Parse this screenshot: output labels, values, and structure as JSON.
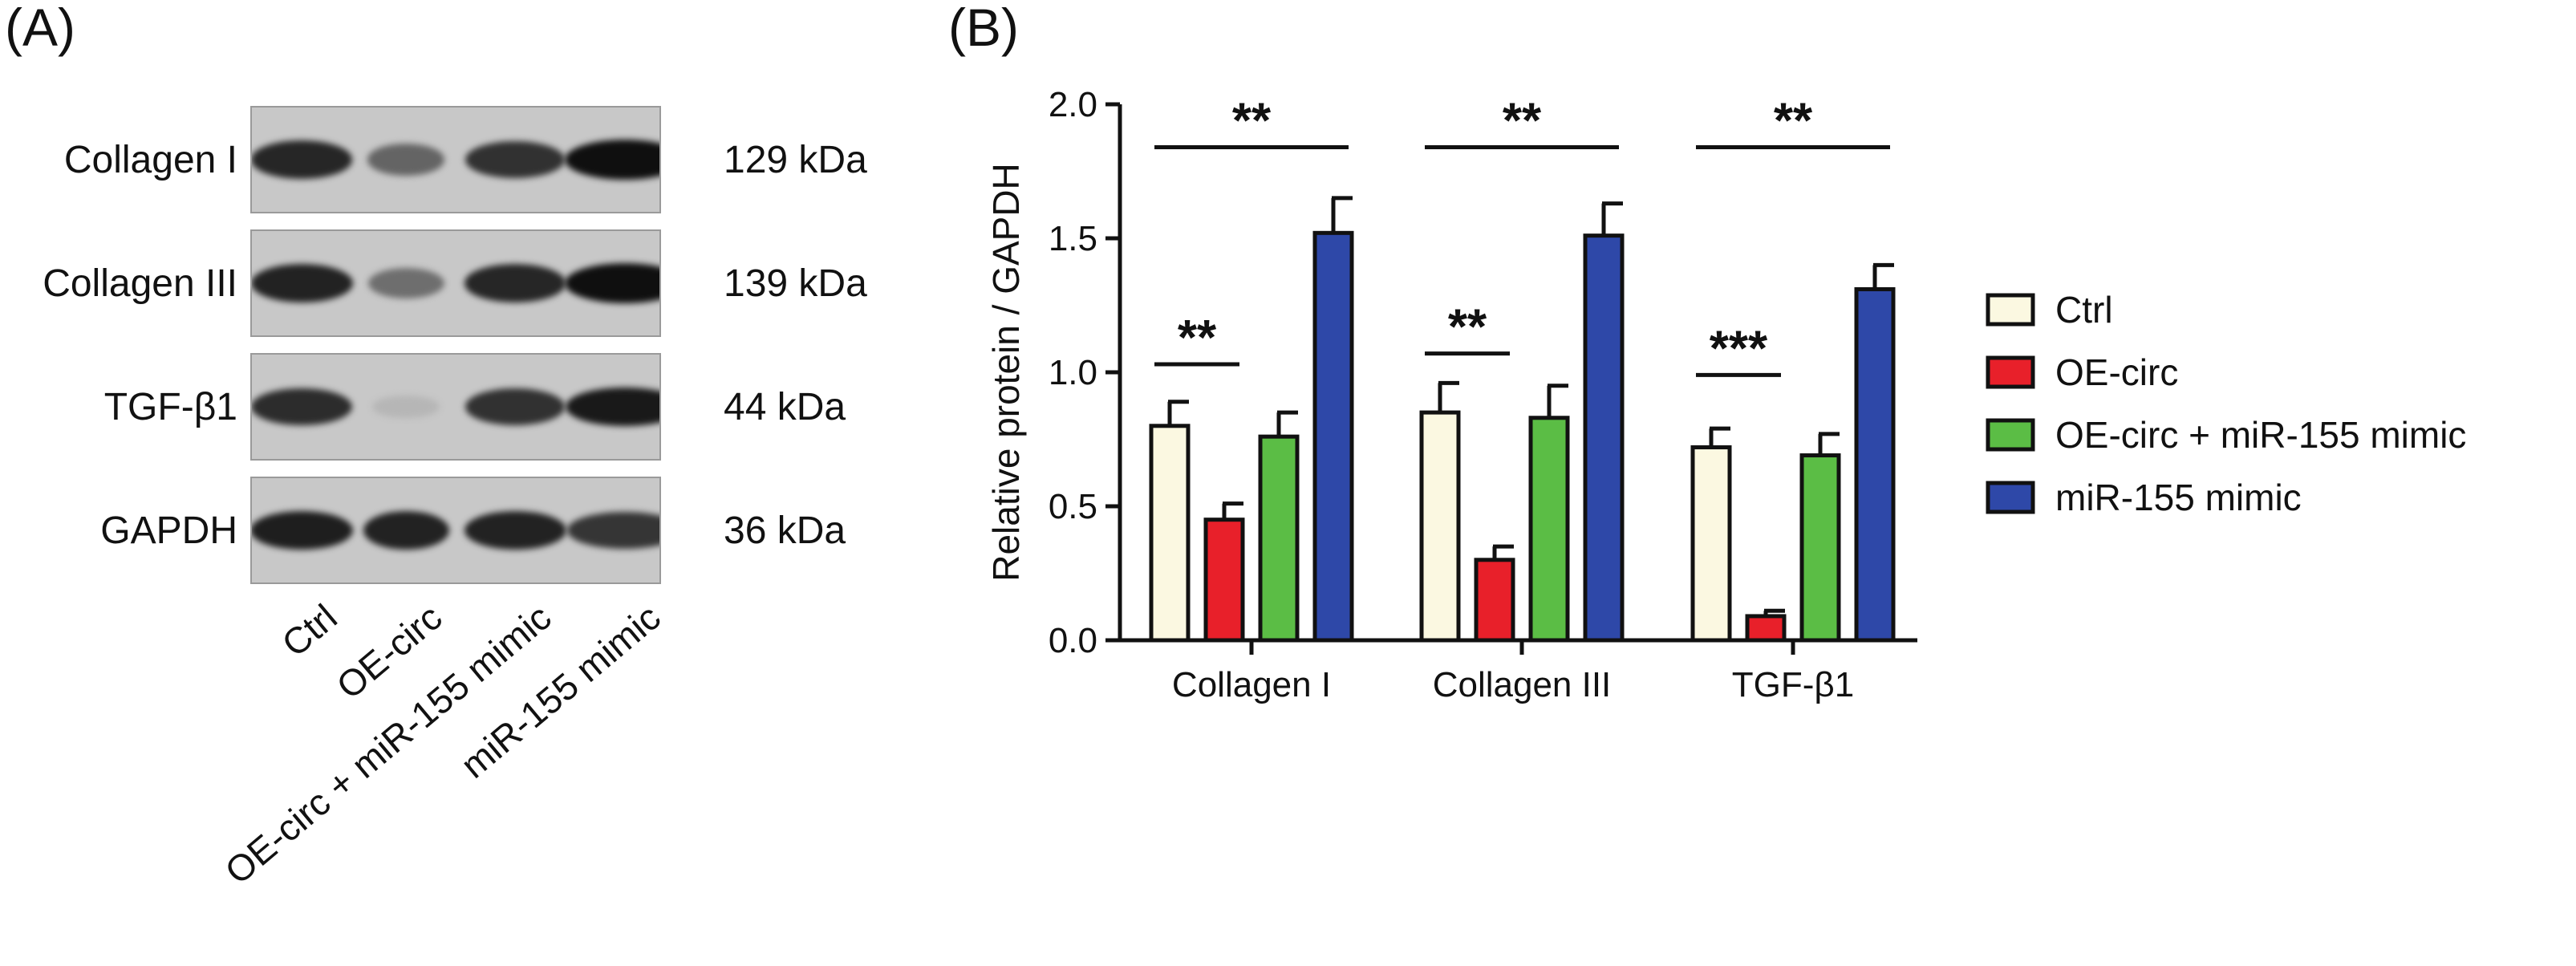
{
  "panels": {
    "a_label": "(A)",
    "b_label": "(B)"
  },
  "blot": {
    "rows": [
      {
        "protein": "Collagen  I",
        "kda": "129 kDa",
        "intensities": [
          0.88,
          0.55,
          0.82,
          1.0
        ]
      },
      {
        "protein": "Collagen III",
        "kda": "139 kDa",
        "intensities": [
          0.9,
          0.5,
          0.88,
          1.0
        ]
      },
      {
        "protein": "TGF-β1",
        "kda": "44 kDa",
        "intensities": [
          0.85,
          0.12,
          0.82,
          0.95
        ]
      },
      {
        "protein": "GAPDH",
        "kda": "36 kDa",
        "intensities": [
          0.92,
          0.9,
          0.9,
          0.8
        ]
      }
    ],
    "lanes": [
      "Ctrl",
      "OE-circ",
      "OE-circ + miR-155 mimic",
      "miR-155 mimic"
    ]
  },
  "colors": {
    "ctrl": "#fbf8e1",
    "oe_circ": "#e8202a",
    "combo": "#5bbd45",
    "mimic": "#2e48a8"
  },
  "chart_data": {
    "type": "bar",
    "title": "",
    "xlabel": "",
    "ylabel": "Relative protein / GAPDH",
    "ylim": [
      0,
      2.0
    ],
    "yticks": [
      "0.0",
      "0.5",
      "1.0",
      "1.5",
      "2.0"
    ],
    "categories": [
      "Collagen I",
      "Collagen III",
      "TGF-β1"
    ],
    "series": [
      {
        "name": "Ctrl",
        "color": "#fbf8e1",
        "values": [
          0.8,
          0.85,
          0.72
        ],
        "errors": [
          0.09,
          0.11,
          0.07
        ]
      },
      {
        "name": "OE-circ",
        "color": "#e8202a",
        "values": [
          0.45,
          0.3,
          0.09
        ],
        "errors": [
          0.06,
          0.05,
          0.02
        ]
      },
      {
        "name": "OE-circ + miR-155 mimic",
        "color": "#5bbd45",
        "values": [
          0.76,
          0.83,
          0.69
        ],
        "errors": [
          0.09,
          0.12,
          0.08
        ]
      },
      {
        "name": "miR-155 mimic",
        "color": "#2e48a8",
        "values": [
          1.52,
          1.51,
          1.31
        ],
        "errors": [
          0.13,
          0.12,
          0.09
        ]
      }
    ],
    "annotations": [
      {
        "category": 0,
        "from": 0,
        "to": 3,
        "text": "**",
        "level": 1.84
      },
      {
        "category": 0,
        "from": 0,
        "to": 1,
        "text": "**",
        "level": 1.03
      },
      {
        "category": 1,
        "from": 0,
        "to": 3,
        "text": "**",
        "level": 1.84
      },
      {
        "category": 1,
        "from": 0,
        "to": 1,
        "text": "**",
        "level": 1.07
      },
      {
        "category": 2,
        "from": 0,
        "to": 3,
        "text": "**",
        "level": 1.84
      },
      {
        "category": 2,
        "from": 0,
        "to": 1,
        "text": "***",
        "level": 0.99
      }
    ],
    "legend_position": "right"
  }
}
